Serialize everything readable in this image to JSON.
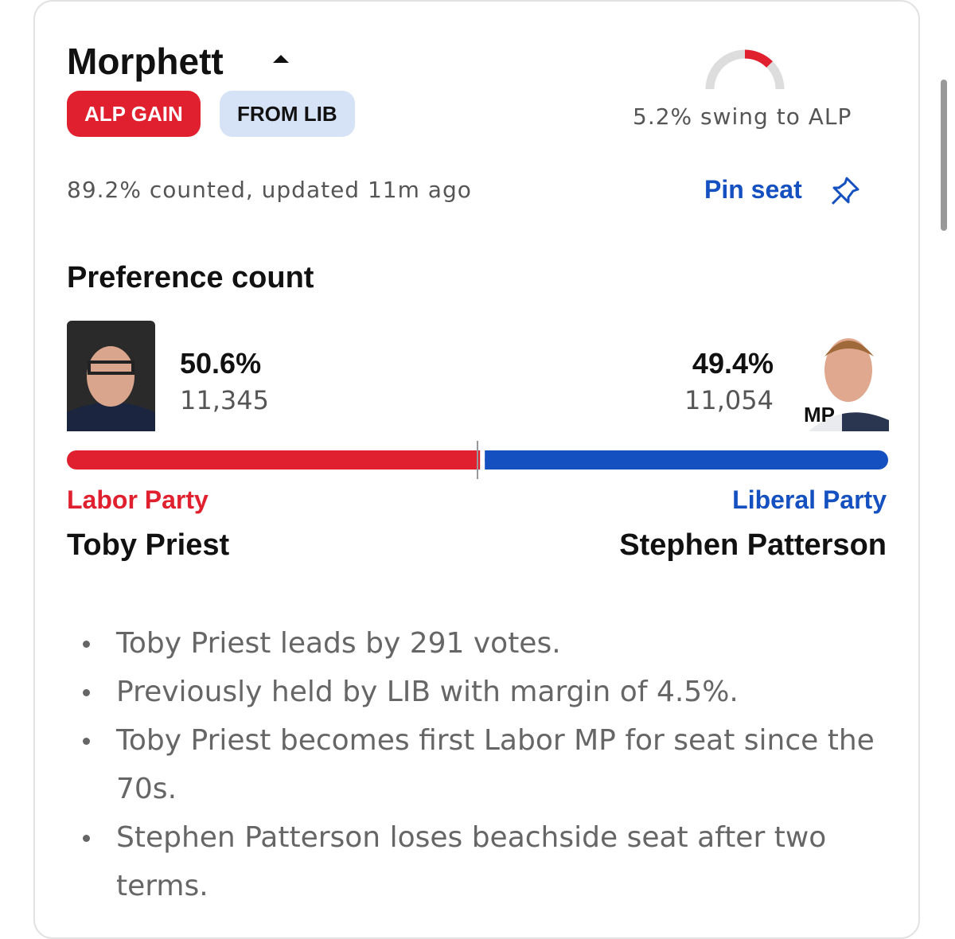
{
  "header": {
    "title": "Morphett",
    "badges": [
      "ALP GAIN",
      "FROM LIB"
    ],
    "swing": "5.2% swing to ALP",
    "status": "89.2% counted, updated 11m ago",
    "pin": "Pin seat"
  },
  "preference": {
    "title": "Preference count",
    "candidates": [
      {
        "percent": {
          "value": 50.6,
          "label": "50.6%"
        },
        "votes": "11,345",
        "party": "Labor Party",
        "name": "Toby Priest",
        "color": "#e0202f"
      },
      {
        "percent": {
          "value": 49.4,
          "label": "49.4%"
        },
        "votes": "11,054",
        "party": "Liberal Party",
        "name": "Stephen Patterson",
        "badge": "MP",
        "color": "#1550c0"
      }
    ]
  },
  "notes": [
    "Toby Priest leads by 291 votes.",
    "Previously held by LIB with margin of 4.5%.",
    "Toby Priest becomes first Labor MP for seat since the 70s.",
    "Stephen Patterson loses beachside seat after two terms."
  ]
}
